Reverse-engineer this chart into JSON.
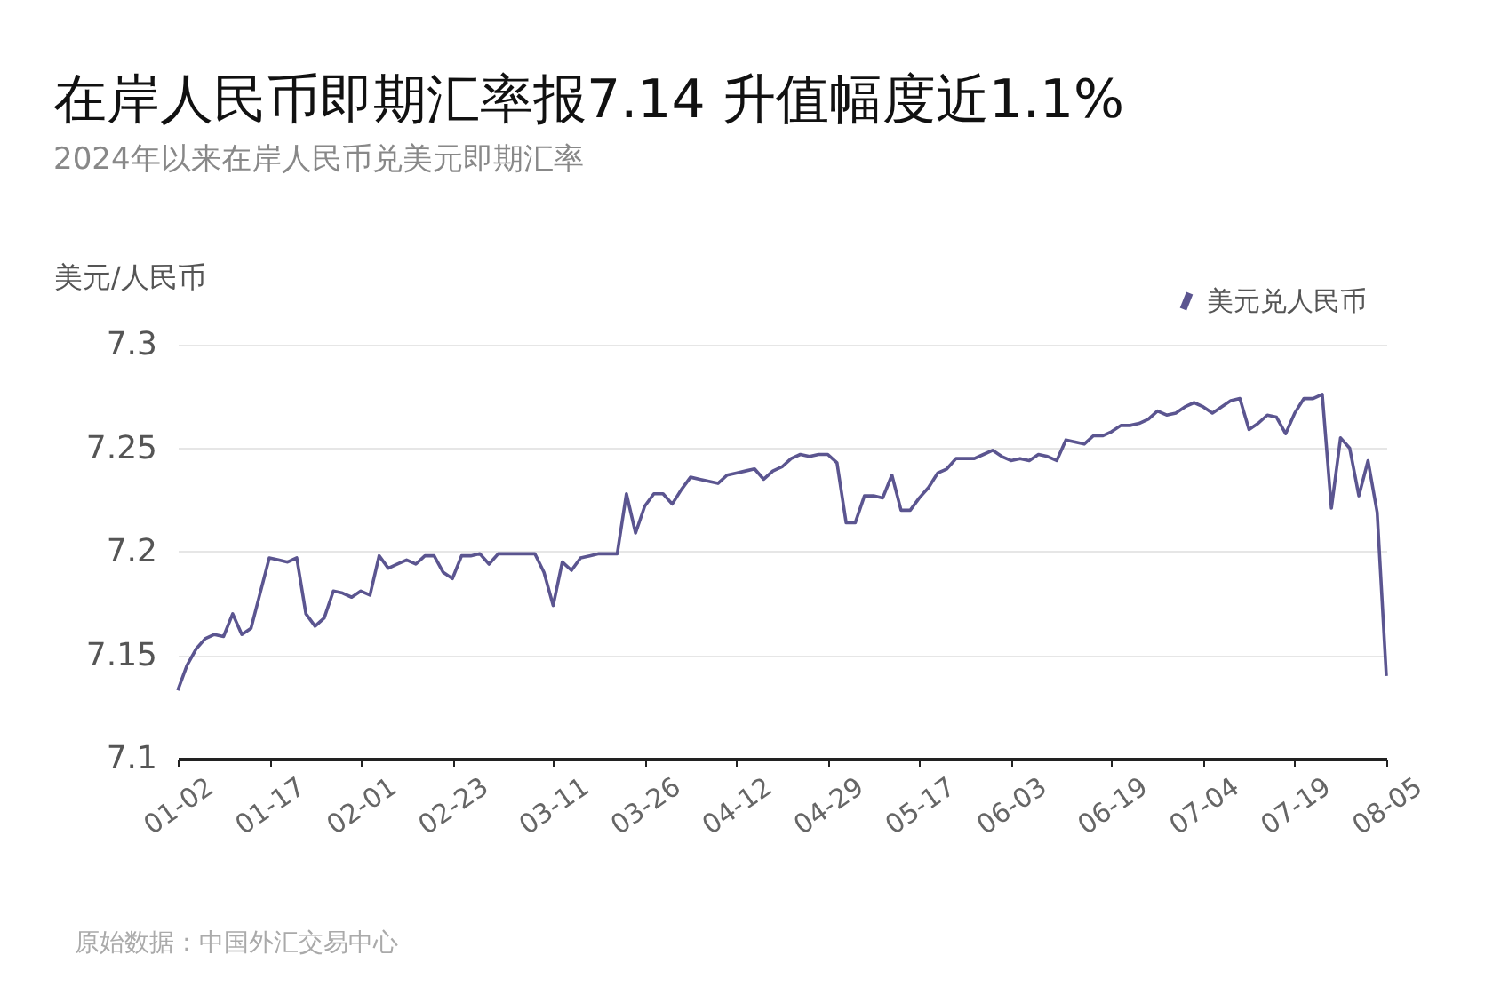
{
  "chart_data": {
    "type": "line",
    "title": "在岸人民币即期汇率报7.14 升值幅度近1.1%",
    "subtitle": "2024年以来在岸人民币兑美元即期汇率",
    "ylabel": "美元/人民币",
    "annotations": [
      "原始数据：中国外汇交易中心"
    ],
    "categories": [
      "01-02",
      null,
      null,
      null,
      null,
      null,
      null,
      null,
      null,
      null,
      "01-17",
      null,
      null,
      null,
      null,
      null,
      null,
      null,
      null,
      null,
      "02-01",
      null,
      null,
      null,
      null,
      null,
      null,
      null,
      null,
      null,
      "02-23",
      null,
      null,
      null,
      null,
      null,
      null,
      null,
      null,
      null,
      null,
      "03-11",
      null,
      null,
      null,
      null,
      null,
      null,
      null,
      null,
      null,
      "03-26",
      null,
      null,
      null,
      null,
      null,
      null,
      null,
      null,
      null,
      "04-12",
      null,
      null,
      null,
      null,
      null,
      null,
      null,
      null,
      null,
      "04-29",
      null,
      null,
      null,
      null,
      null,
      null,
      null,
      null,
      null,
      "05-17",
      null,
      null,
      null,
      null,
      null,
      null,
      null,
      null,
      null,
      "06-03",
      null,
      null,
      null,
      null,
      null,
      null,
      null,
      null,
      null,
      null,
      "06-19",
      null,
      null,
      null,
      null,
      null,
      null,
      null,
      null,
      null,
      "07-04",
      null,
      null,
      null,
      null,
      null,
      null,
      null,
      null,
      null,
      "07-19",
      null,
      null,
      null,
      null,
      null,
      null,
      null,
      null,
      null,
      "08-05"
    ],
    "series": [
      {
        "name": "美元兑人民币",
        "color": "#5b5590",
        "values": [
          7.133,
          7.145,
          7.153,
          7.158,
          7.16,
          7.159,
          7.17,
          7.16,
          7.163,
          7.18,
          7.197,
          7.196,
          7.195,
          7.197,
          7.17,
          7.164,
          7.168,
          7.181,
          7.18,
          7.178,
          7.181,
          7.179,
          7.198,
          7.192,
          7.194,
          7.196,
          7.194,
          7.198,
          7.198,
          7.19,
          7.187,
          7.198,
          7.198,
          7.199,
          7.194,
          7.199,
          7.199,
          7.199,
          7.199,
          7.199,
          7.19,
          7.174,
          7.195,
          7.191,
          7.197,
          7.198,
          7.199,
          7.199,
          7.199,
          7.228,
          7.209,
          7.222,
          7.228,
          7.228,
          7.223,
          7.23,
          7.236,
          7.235,
          7.234,
          7.233,
          7.237,
          7.238,
          7.239,
          7.24,
          7.235,
          7.239,
          7.241,
          7.245,
          7.247,
          7.246,
          7.247,
          7.247,
          7.243,
          7.214,
          7.214,
          7.227,
          7.227,
          7.226,
          7.237,
          7.22,
          7.22,
          7.226,
          7.231,
          7.238,
          7.24,
          7.245,
          7.245,
          7.245,
          7.247,
          7.249,
          7.246,
          7.244,
          7.245,
          7.244,
          7.247,
          7.246,
          7.244,
          7.254,
          7.253,
          7.252,
          7.256,
          7.256,
          7.258,
          7.261,
          7.261,
          7.262,
          7.264,
          7.268,
          7.266,
          7.267,
          7.27,
          7.272,
          7.27,
          7.267,
          7.27,
          7.273,
          7.274,
          7.259,
          7.262,
          7.266,
          7.265,
          7.257,
          7.267,
          7.274,
          7.274,
          7.276,
          7.221,
          7.255,
          7.25,
          7.227,
          7.244,
          7.219,
          7.14
        ]
      }
    ],
    "ylim": [
      7.1,
      7.3
    ],
    "yticks": [
      7.1,
      7.15,
      7.2,
      7.25,
      7.3
    ],
    "grid": "y",
    "legend": "top right",
    "line_style": "solid"
  }
}
